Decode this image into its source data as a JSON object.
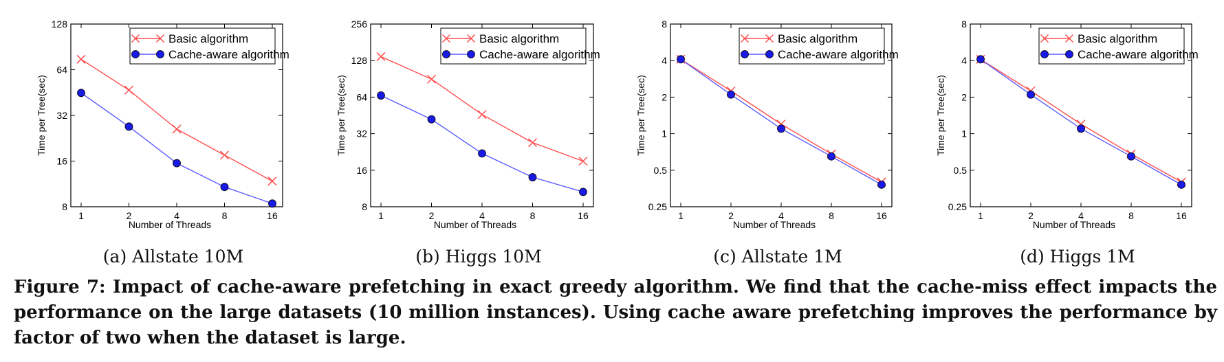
{
  "chart_data": [
    {
      "type": "line",
      "caption": "(a) Allstate 10M",
      "xlabel": "Number of Threads",
      "ylabel": "Time per Tree(sec)",
      "x": [
        1,
        2,
        4,
        8,
        16
      ],
      "x_scale": "log2",
      "y_scale": "log2",
      "ylim": [
        8,
        128
      ],
      "yticks": [
        8,
        16,
        32,
        64,
        128
      ],
      "legend_position": "top-right",
      "series": [
        {
          "name": "Basic algorithm",
          "color": "#ff4d4d",
          "marker": "x",
          "values": [
            75,
            47,
            26,
            17.5,
            11.8
          ]
        },
        {
          "name": "Cache-aware algorithm",
          "color": "#5a5aff",
          "marker": "o",
          "values": [
            45,
            27,
            15.5,
            10.8,
            8.4
          ]
        }
      ]
    },
    {
      "type": "line",
      "caption": "(b) Higgs 10M",
      "xlabel": "Number of Threads",
      "ylabel": "Time per Tree(sec)",
      "x": [
        1,
        2,
        4,
        8,
        16
      ],
      "x_scale": "log2",
      "y_scale": "log2",
      "ylim": [
        8,
        256
      ],
      "yticks": [
        8,
        16,
        32,
        64,
        128,
        256
      ],
      "legend_position": "top-right",
      "series": [
        {
          "name": "Basic algorithm",
          "color": "#ff4d4d",
          "marker": "x",
          "values": [
            138,
            90,
            46,
            27,
            19
          ]
        },
        {
          "name": "Cache-aware algorithm",
          "color": "#5a5aff",
          "marker": "o",
          "values": [
            66,
            42,
            22,
            14,
            10.6
          ]
        }
      ]
    },
    {
      "type": "line",
      "caption": "(c) Allstate 1M",
      "xlabel": "Number of Threads",
      "ylabel": "Time per Tree(sec)",
      "x": [
        1,
        2,
        4,
        8,
        16
      ],
      "x_scale": "log2",
      "y_scale": "log2",
      "ylim": [
        0.25,
        8
      ],
      "yticks": [
        0.25,
        0.5,
        1,
        2,
        4,
        8
      ],
      "legend_position": "top-right",
      "series": [
        {
          "name": "Basic algorithm",
          "color": "#ff4d4d",
          "marker": "x",
          "values": [
            4.1,
            2.25,
            1.2,
            0.68,
            0.4
          ]
        },
        {
          "name": "Cache-aware algorithm",
          "color": "#5a5aff",
          "marker": "o",
          "values": [
            4.1,
            2.1,
            1.1,
            0.65,
            0.38
          ]
        }
      ]
    },
    {
      "type": "line",
      "caption": "(d) Higgs 1M",
      "xlabel": "Number of Threads",
      "ylabel": "Time per Tree(sec)",
      "x": [
        1,
        2,
        4,
        8,
        16
      ],
      "x_scale": "log2",
      "y_scale": "log2",
      "ylim": [
        0.25,
        8
      ],
      "yticks": [
        0.25,
        0.5,
        1,
        2,
        4,
        8
      ],
      "legend_position": "top-right",
      "series": [
        {
          "name": "Basic algorithm",
          "color": "#ff4d4d",
          "marker": "x",
          "values": [
            4.1,
            2.25,
            1.2,
            0.68,
            0.4
          ]
        },
        {
          "name": "Cache-aware algorithm",
          "color": "#5a5aff",
          "marker": "o",
          "values": [
            4.1,
            2.1,
            1.1,
            0.65,
            0.38
          ]
        }
      ]
    }
  ],
  "figure_caption": "Figure 7: Impact of cache-aware prefetching in exact greedy algorithm. We find that the cache-miss effect impacts the performance on the large datasets (10 million instances). Using cache aware prefetching improves the performance by factor of two when the dataset is large."
}
